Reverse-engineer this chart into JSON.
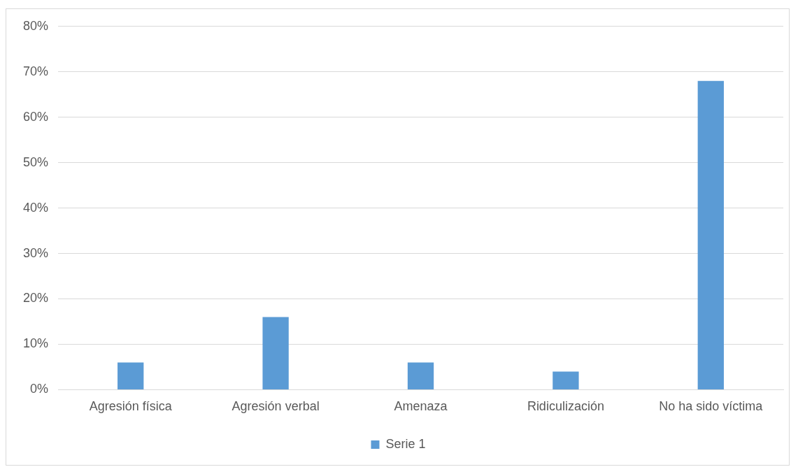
{
  "chart_data": {
    "type": "bar",
    "categories": [
      "Agresión física",
      "Agresión verbal",
      "Amenaza",
      "Ridiculización",
      "No ha sido víctima"
    ],
    "series": [
      {
        "name": "Serie 1",
        "color": "#5b9bd5",
        "values": [
          6,
          16,
          6,
          4,
          68
        ]
      }
    ],
    "ylim": [
      0,
      80
    ],
    "yticks": [
      {
        "value": 0,
        "label": "0%"
      },
      {
        "value": 10,
        "label": "10%"
      },
      {
        "value": 20,
        "label": "20%"
      },
      {
        "value": 30,
        "label": "30%"
      },
      {
        "value": 40,
        "label": "40%"
      },
      {
        "value": 50,
        "label": "50%"
      },
      {
        "value": 60,
        "label": "60%"
      },
      {
        "value": 70,
        "label": "70%"
      },
      {
        "value": 80,
        "label": "80%"
      }
    ],
    "grid": "y",
    "legend": "bottom"
  }
}
